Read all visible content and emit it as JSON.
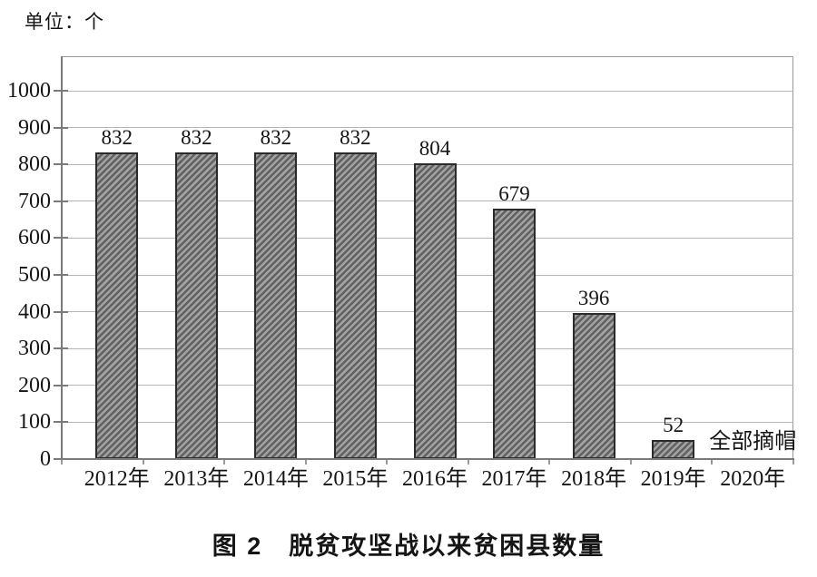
{
  "chart_data": {
    "type": "bar",
    "title": "图 2　脱贫攻坚战以来贫困县数量",
    "unit_label": "单位：个",
    "categories": [
      "2012年",
      "2013年",
      "2014年",
      "2015年",
      "2016年",
      "2017年",
      "2018年",
      "2019年",
      "2020年"
    ],
    "values": [
      832,
      832,
      832,
      832,
      804,
      679,
      396,
      52,
      null
    ],
    "annotation": {
      "text": "全部摘帽",
      "category": "2020年",
      "category_index": 8
    },
    "xlabel": "",
    "ylabel": "",
    "ylim": [
      0,
      1000
    ],
    "y_tick_step": 100,
    "y_ticks": [
      0,
      100,
      200,
      300,
      400,
      500,
      600,
      700,
      800,
      900,
      1000
    ],
    "grid": "horizontal-only",
    "legend_position": "none",
    "hatch": "diagonal-forward-slash",
    "styles": {
      "bar_fill": "#a2a2a2",
      "bar_hatch_color": "#616161",
      "bar_border": "#2b2b2b",
      "gridline_color": "#b5b5b5",
      "plot_border_color": "#9a9a9a",
      "axis_color": "#7a7a7a",
      "minor_tick_color": "#9a9a9a",
      "text_color": "#151515",
      "background": "#ffffff"
    }
  }
}
